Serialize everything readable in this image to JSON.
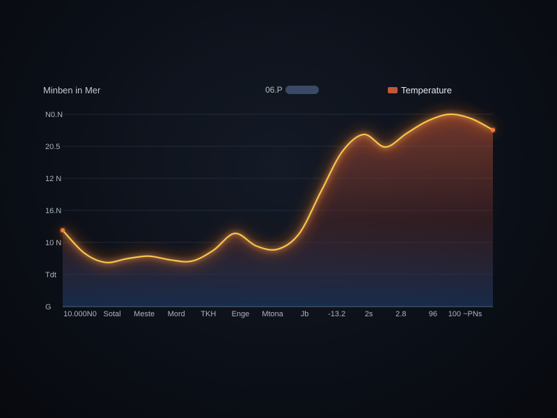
{
  "header": {
    "title": "Minben in Mer",
    "toggle_label": "06.P"
  },
  "colors": {
    "line": "#ffc24a",
    "glow": "#ff6a1f",
    "area_top": "#c2573a",
    "area_bottom": "#1d3a66",
    "legend_swatch": "#c2573a",
    "toggle": "#3a4a66"
  },
  "chart_data": {
    "type": "line",
    "grid": true,
    "legend_position": "top-right",
    "y_ticks": [
      "N0.N",
      "20.5",
      "12 N",
      "16.N",
      "10 N",
      "Tdt",
      "G"
    ],
    "x_ticks": [
      "10.000N0",
      "Sotal",
      "Meste",
      "Mord",
      "TKH",
      "Enge",
      "Mtona",
      "Jb",
      "-13.2",
      "2s",
      "2.8",
      "96",
      "100 ~PNs"
    ],
    "series": [
      {
        "name": "Temperature",
        "x": [
          0,
          5,
          10,
          15,
          20,
          25,
          30,
          35,
          40,
          45,
          50,
          55,
          60,
          65,
          70,
          75,
          80,
          85,
          90,
          95,
          100
        ],
        "y": [
          12.1,
          8.5,
          7.0,
          7.6,
          8.0,
          7.4,
          7.2,
          8.9,
          11.6,
          9.6,
          9.1,
          11.6,
          18.2,
          24.6,
          27.3,
          25.3,
          27.5,
          29.5,
          30.5,
          29.8,
          28.0
        ]
      }
    ]
  }
}
